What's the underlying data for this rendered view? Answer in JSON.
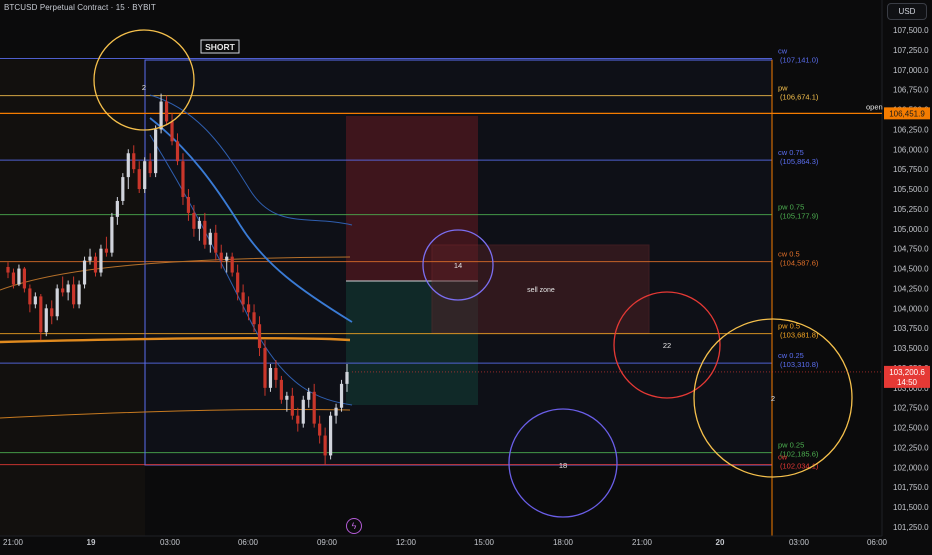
{
  "header": {
    "title": "BTCUSD Perpetual Contract · 15 · BYBIT",
    "currency": "USD"
  },
  "colors": {
    "background": "#0b0b0c",
    "up": "#d1d4dc",
    "down": "#c9362b",
    "cw": "#5b6ef0",
    "pw": "#f5c04c",
    "pw075": "#4caf50",
    "cw05": "#e0702a",
    "pw05": "#f5a623",
    "cw025": "#5b6ef0",
    "pw025": "#4caf50",
    "cw0": "#e53935",
    "open": "#f57c00",
    "current": "#e53935"
  },
  "chart_data": {
    "type": "candlestick",
    "symbol": "BTCUSD Perpetual Contract",
    "interval": "15",
    "exchange": "BYBIT",
    "ylim": [
      101200,
      107900
    ],
    "y_ticks": [
      101250,
      101500,
      101750,
      102000,
      102250,
      102500,
      102750,
      103000,
      103250,
      103500,
      103750,
      104000,
      104250,
      104500,
      104750,
      105000,
      105250,
      105500,
      105750,
      106000,
      106250,
      106500,
      106750,
      107000,
      107250,
      107500
    ],
    "x_ticks": [
      "21:00",
      "19",
      "03:00",
      "06:00",
      "09:00",
      "12:00",
      "15:00",
      "18:00",
      "21:00",
      "20",
      "03:00",
      "06:00"
    ],
    "grid": false,
    "levels": [
      {
        "label": "cw",
        "value_text": "(107,141.0)",
        "value": 107141.0,
        "color": "#5b6ef0"
      },
      {
        "label": "pw",
        "value_text": "(106,674.1)",
        "value": 106674.1,
        "color": "#f5c04c"
      },
      {
        "label": "cw 0.75",
        "value_text": "(105,864.3)",
        "value": 105864.3,
        "color": "#5b6ef0"
      },
      {
        "label": "pw 0.75",
        "value_text": "(105,177.9)",
        "value": 105177.9,
        "color": "#4caf50"
      },
      {
        "label": "cw 0.5",
        "value_text": "(104,587.6)",
        "value": 104587.6,
        "color": "#e0702a"
      },
      {
        "label": "pw 0.5",
        "value_text": "(103,681.8)",
        "value": 103681.8,
        "color": "#f5a623"
      },
      {
        "label": "cw 0.25",
        "value_text": "(103,310.8)",
        "value": 103310.8,
        "color": "#5b6ef0"
      },
      {
        "label": "pw 0.25",
        "value_text": "(102,185.6)",
        "value": 102185.6,
        "color": "#4caf50"
      },
      {
        "label": "cw",
        "value_text": "(102,034.1)",
        "value": 102034.1,
        "color": "#e53935"
      }
    ],
    "open_label": "open",
    "open_price": "106,451.9",
    "open_value": 106451.9,
    "current_price": "103,200.6",
    "countdown": "14:50",
    "current_value": 103200.6,
    "annotations": {
      "short": "SHORT",
      "sell_zone": "sell zone"
    },
    "markers": [
      "2",
      "14",
      "22",
      "18",
      "2"
    ],
    "candles": [
      [
        104520,
        104580,
        104380,
        104450
      ],
      [
        104450,
        104500,
        104250,
        104300
      ],
      [
        104300,
        104550,
        104280,
        104500
      ],
      [
        104500,
        104520,
        104200,
        104250
      ],
      [
        104250,
        104300,
        103950,
        104050
      ],
      [
        104050,
        104200,
        104000,
        104150
      ],
      [
        104150,
        104180,
        103600,
        103700
      ],
      [
        103700,
        104050,
        103650,
        104000
      ],
      [
        104000,
        104100,
        103800,
        103900
      ],
      [
        103900,
        104300,
        103850,
        104250
      ],
      [
        104250,
        104400,
        104150,
        104200
      ],
      [
        104200,
        104350,
        104100,
        104300
      ],
      [
        104300,
        104400,
        104000,
        104050
      ],
      [
        104050,
        104350,
        104000,
        104300
      ],
      [
        104300,
        104650,
        104250,
        104600
      ],
      [
        104600,
        104750,
        104550,
        104650
      ],
      [
        104650,
        104700,
        104400,
        104450
      ],
      [
        104450,
        104800,
        104400,
        104750
      ],
      [
        104750,
        104900,
        104650,
        104700
      ],
      [
        104700,
        105200,
        104650,
        105150
      ],
      [
        105150,
        105400,
        105050,
        105350
      ],
      [
        105350,
        105700,
        105300,
        105650
      ],
      [
        105650,
        106000,
        105500,
        105950
      ],
      [
        105950,
        106050,
        105700,
        105750
      ],
      [
        105750,
        105850,
        105450,
        105500
      ],
      [
        105500,
        105900,
        105450,
        105850
      ],
      [
        105850,
        105950,
        105650,
        105700
      ],
      [
        105700,
        106300,
        105650,
        106250
      ],
      [
        106250,
        106700,
        106200,
        106600
      ],
      [
        106600,
        106674,
        106300,
        106350
      ],
      [
        106350,
        106450,
        106050,
        106100
      ],
      [
        106100,
        106200,
        105800,
        105850
      ],
      [
        105850,
        105950,
        105300,
        105400
      ],
      [
        105400,
        105500,
        105100,
        105200
      ],
      [
        105200,
        105300,
        104900,
        105000
      ],
      [
        105000,
        105150,
        104850,
        105100
      ],
      [
        105100,
        105200,
        104750,
        104800
      ],
      [
        104800,
        105000,
        104700,
        104950
      ],
      [
        104950,
        105050,
        104600,
        104700
      ],
      [
        104700,
        104800,
        104500,
        104600
      ],
      [
        104600,
        104700,
        104450,
        104650
      ],
      [
        104650,
        104700,
        104400,
        104450
      ],
      [
        104450,
        104550,
        104100,
        104200
      ],
      [
        104200,
        104300,
        103950,
        104050
      ],
      [
        104050,
        104150,
        103850,
        103950
      ],
      [
        103950,
        104050,
        103700,
        103800
      ],
      [
        103800,
        103900,
        103400,
        103500
      ],
      [
        103500,
        103600,
        102900,
        103000
      ],
      [
        103000,
        103300,
        102950,
        103250
      ],
      [
        103250,
        103350,
        103000,
        103100
      ],
      [
        103100,
        103150,
        102800,
        102850
      ],
      [
        102850,
        102950,
        102700,
        102900
      ],
      [
        102900,
        103000,
        102600,
        102650
      ],
      [
        102650,
        102750,
        102450,
        102550
      ],
      [
        102550,
        102900,
        102500,
        102850
      ],
      [
        102850,
        103000,
        102750,
        102950
      ],
      [
        102950,
        103050,
        102500,
        102550
      ],
      [
        102550,
        102650,
        102300,
        102400
      ],
      [
        102400,
        102500,
        102034,
        102150
      ],
      [
        102150,
        102700,
        102100,
        102650
      ],
      [
        102650,
        102800,
        102550,
        102750
      ],
      [
        102750,
        103100,
        102700,
        103050
      ],
      [
        103050,
        103300,
        102950,
        103200
      ]
    ]
  }
}
